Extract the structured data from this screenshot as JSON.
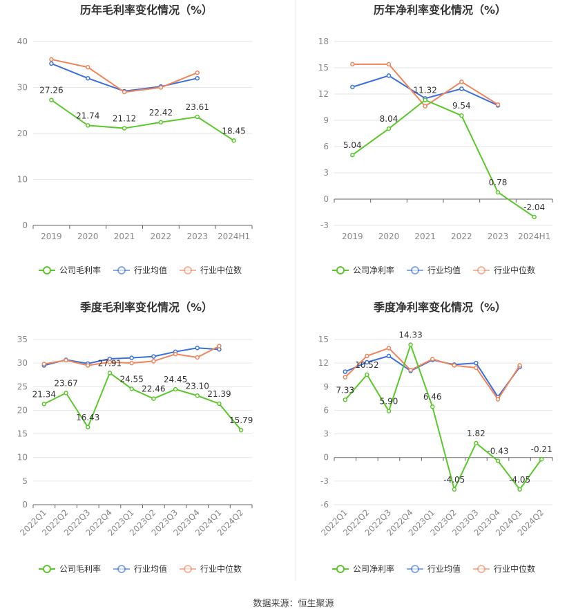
{
  "source_text": "数据来源：恒生聚源",
  "colors": {
    "company": "#5ac82a",
    "avg": "#3a6fdc",
    "median": "#f0845a"
  },
  "chart_data": [
    {
      "type": "line",
      "title": "历年毛利率变化情况（%）",
      "categories": [
        "2019",
        "2020",
        "2021",
        "2022",
        "2023",
        "2024H1"
      ],
      "ylim": [
        0,
        40
      ],
      "yticks": [
        0,
        10,
        20,
        30,
        40
      ],
      "grid": true,
      "legend": "bottom",
      "series": [
        {
          "name": "公司毛利率",
          "key": "company",
          "values": [
            27.26,
            21.74,
            21.12,
            22.42,
            23.61,
            18.45
          ],
          "labels": [
            "27.26",
            "21.74",
            "21.12",
            "22.42",
            "23.61",
            "18.45"
          ]
        },
        {
          "name": "行业均值",
          "key": "avg",
          "values": [
            35.2,
            32.0,
            29.2,
            30.2,
            32.0,
            null
          ]
        },
        {
          "name": "行业中位数",
          "key": "median",
          "values": [
            36.1,
            34.4,
            29.0,
            30.0,
            33.2,
            null
          ]
        }
      ]
    },
    {
      "type": "line",
      "title": "历年净利率变化情况（%）",
      "categories": [
        "2019",
        "2020",
        "2021",
        "2022",
        "2023",
        "2024H1"
      ],
      "ylim": [
        -3,
        18
      ],
      "yticks": [
        -3,
        0,
        3,
        6,
        9,
        12,
        15,
        18
      ],
      "grid": true,
      "legend": "bottom",
      "series": [
        {
          "name": "公司净利率",
          "key": "company",
          "values": [
            5.04,
            8.04,
            11.32,
            9.54,
            0.78,
            -2.04
          ],
          "labels": [
            "5.04",
            "8.04",
            "11.32",
            "9.54",
            "0.78",
            "-2.04"
          ]
        },
        {
          "name": "行业均值",
          "key": "avg",
          "values": [
            12.8,
            14.1,
            11.5,
            12.6,
            10.7,
            null
          ]
        },
        {
          "name": "行业中位数",
          "key": "median",
          "values": [
            15.4,
            15.4,
            10.6,
            13.4,
            10.8,
            null
          ]
        }
      ]
    },
    {
      "type": "line",
      "title": "季度毛利率变化情况（%）",
      "categories": [
        "2022Q1",
        "2022Q2",
        "2022Q3",
        "2022Q4",
        "2023Q1",
        "2023Q2",
        "2023Q3",
        "2023Q4",
        "2024Q1",
        "2024Q2"
      ],
      "ylim": [
        0,
        35
      ],
      "yticks": [
        0,
        5,
        10,
        15,
        20,
        25,
        30,
        35
      ],
      "grid": true,
      "legend": "bottom",
      "series": [
        {
          "name": "公司毛利率",
          "key": "company",
          "values": [
            21.34,
            23.67,
            16.43,
            27.91,
            24.55,
            22.46,
            24.45,
            23.1,
            21.39,
            15.79
          ],
          "labels": [
            "21.34",
            "23.67",
            "16.43",
            "27.91",
            "24.55",
            "22.46",
            "24.45",
            "23.10",
            "21.39",
            "15.79"
          ]
        },
        {
          "name": "行业均值",
          "key": "avg",
          "values": [
            29.5,
            30.7,
            29.9,
            30.9,
            31.1,
            31.4,
            32.4,
            33.2,
            32.9,
            null
          ]
        },
        {
          "name": "行业中位数",
          "key": "median",
          "values": [
            29.8,
            30.6,
            29.5,
            30.2,
            30.0,
            30.4,
            31.9,
            31.2,
            33.6,
            null
          ]
        }
      ]
    },
    {
      "type": "line",
      "title": "季度净利率变化情况（%）",
      "categories": [
        "2022Q1",
        "2022Q2",
        "2022Q3",
        "2022Q4",
        "2023Q1",
        "2023Q2",
        "2023Q3",
        "2023Q4",
        "2024Q1",
        "2024Q2"
      ],
      "ylim": [
        -6,
        15
      ],
      "yticks": [
        -6,
        -3,
        0,
        3,
        6,
        9,
        12,
        15
      ],
      "grid": true,
      "legend": "bottom",
      "series": [
        {
          "name": "公司净利率",
          "key": "company",
          "values": [
            7.33,
            10.52,
            5.9,
            14.33,
            6.46,
            -4.05,
            1.82,
            -0.43,
            -4.05,
            -0.21
          ],
          "labels": [
            "7.33",
            "10.52",
            "5.90",
            "14.33",
            "6.46",
            "-4.05",
            "1.82",
            "-0.43",
            "-4.05",
            "-0.21"
          ]
        },
        {
          "name": "行业均值",
          "key": "avg",
          "values": [
            10.9,
            12.1,
            12.9,
            11.0,
            12.4,
            11.8,
            12.0,
            7.7,
            11.5,
            null
          ]
        },
        {
          "name": "行业中位数",
          "key": "median",
          "values": [
            10.2,
            12.9,
            13.9,
            11.1,
            12.5,
            11.7,
            11.4,
            7.4,
            11.7,
            null
          ]
        }
      ]
    }
  ]
}
